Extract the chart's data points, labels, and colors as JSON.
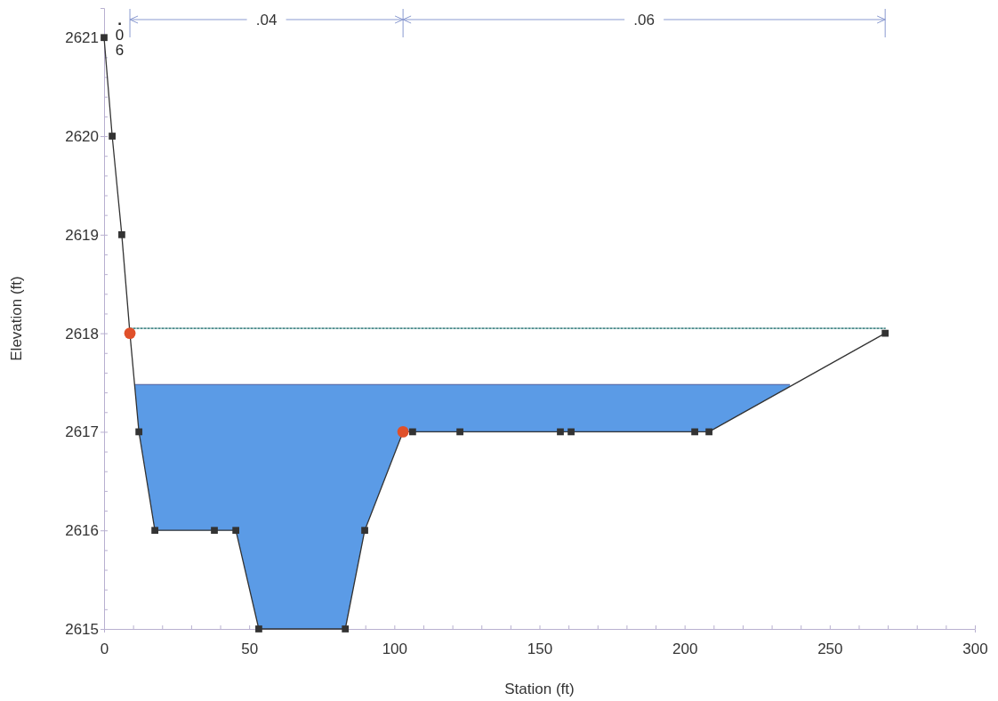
{
  "chart_data": {
    "type": "line",
    "xlabel": "Station (ft)",
    "ylabel": "Elevation (ft)",
    "xlim": [
      0,
      300
    ],
    "ylim": [
      2615,
      2621.3
    ],
    "xticks": [
      0,
      {
        "value": 10,
        "label": null
      },
      {
        "value": 20,
        "label": null
      },
      {
        "value": 30,
        "label": null
      },
      {
        "value": 40,
        "label": null
      },
      50,
      {
        "value": 60,
        "label": null
      },
      {
        "value": 70,
        "label": null
      },
      {
        "value": 80,
        "label": null
      },
      {
        "value": 90,
        "label": null
      },
      100,
      {
        "value": 110,
        "label": null
      },
      {
        "value": 120,
        "label": null
      },
      {
        "value": 130,
        "label": null
      },
      {
        "value": 140,
        "label": null
      },
      150,
      {
        "value": 160,
        "label": null
      },
      {
        "value": 170,
        "label": null
      },
      {
        "value": 180,
        "label": null
      },
      {
        "value": 190,
        "label": null
      },
      200,
      {
        "value": 210,
        "label": null
      },
      {
        "value": 220,
        "label": null
      },
      {
        "value": 230,
        "label": null
      },
      {
        "value": 240,
        "label": null
      },
      250,
      {
        "value": 260,
        "label": null
      },
      {
        "value": 270,
        "label": null
      },
      {
        "value": 280,
        "label": null
      },
      {
        "value": 290,
        "label": null
      },
      300
    ],
    "yticks": [
      2615,
      {
        "value": 2615.2,
        "label": null
      },
      {
        "value": 2615.4,
        "label": null
      },
      {
        "value": 2615.6,
        "label": null
      },
      {
        "value": 2615.8,
        "label": null
      },
      2616,
      {
        "value": 2616.2,
        "label": null
      },
      {
        "value": 2616.4,
        "label": null
      },
      {
        "value": 2616.6,
        "label": null
      },
      {
        "value": 2616.8,
        "label": null
      },
      2617,
      {
        "value": 2617.2,
        "label": null
      },
      {
        "value": 2617.4,
        "label": null
      },
      {
        "value": 2617.6,
        "label": null
      },
      {
        "value": 2617.8,
        "label": null
      },
      2618,
      {
        "value": 2618.2,
        "label": null
      },
      {
        "value": 2618.4,
        "label": null
      },
      {
        "value": 2618.6,
        "label": null
      },
      {
        "value": 2618.8,
        "label": null
      },
      2619,
      {
        "value": 2619.2,
        "label": null
      },
      {
        "value": 2619.4,
        "label": null
      },
      {
        "value": 2619.6,
        "label": null
      },
      {
        "value": 2619.8,
        "label": null
      },
      2620,
      {
        "value": 2620.2,
        "label": null
      },
      {
        "value": 2620.4,
        "label": null
      },
      {
        "value": 2620.6,
        "label": null
      },
      {
        "value": 2620.8,
        "label": null
      },
      2621
    ],
    "grid": false,
    "series": [
      {
        "type": "area",
        "color": "#5b9be6",
        "x": [
          10.7,
          236.3
        ],
        "values": [
          2617.48,
          2617.48
        ]
      },
      {
        "type": "line",
        "color": "#4a8a8a",
        "line_style": "dotted",
        "marker": "none",
        "x": [
          8.9,
          269.1
        ],
        "values": [
          2618.05,
          2618.05
        ]
      },
      {
        "color": "#333333",
        "line_style": "solid",
        "marker": "square",
        "x": [
          0,
          2.8,
          6.1,
          8.9,
          12.0,
          17.5,
          38.0,
          45.4,
          53.3,
          83.1,
          89.8,
          103.0,
          106.3,
          122.6,
          157.2,
          160.9,
          203.5,
          208.4,
          269.1
        ],
        "values": [
          2621,
          2620,
          2619,
          2618,
          2617,
          2616,
          2616,
          2616,
          2615,
          2615,
          2616,
          2617,
          2617,
          2617,
          2617,
          2617,
          2617,
          2617,
          2618
        ]
      },
      {
        "type": "scatter",
        "color": "#e0502a",
        "marker": "circle",
        "x": [
          8.9,
          103.0
        ],
        "values": [
          2618,
          2617
        ]
      }
    ],
    "annotations": [
      ".06",
      ".04",
      ".06"
    ]
  }
}
